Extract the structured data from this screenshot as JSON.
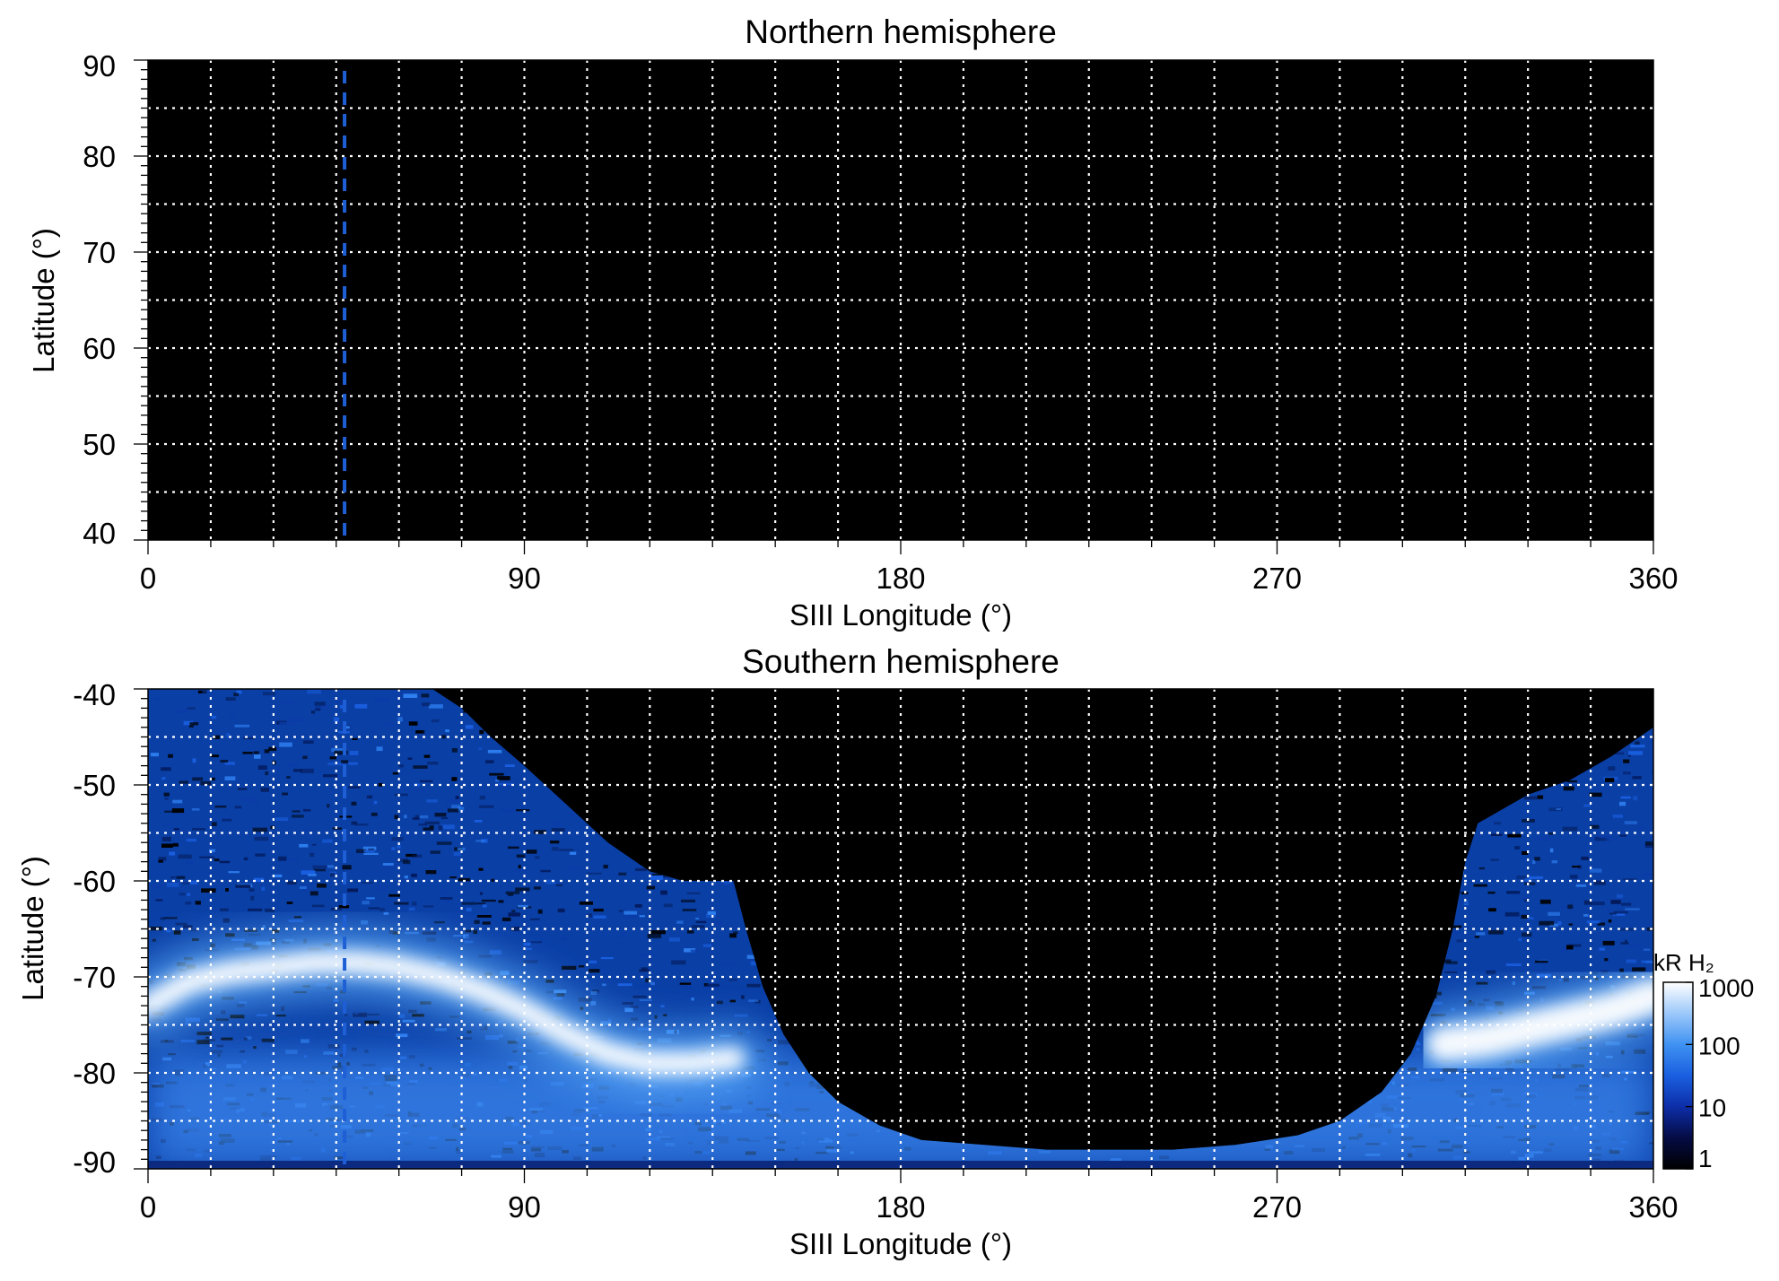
{
  "chart_data": [
    {
      "type": "heatmap",
      "title": "Northern hemisphere",
      "xlabel": "SIII Longitude (°)",
      "ylabel": "Latitude (°)",
      "xlim": [
        0,
        360
      ],
      "ylim": [
        40,
        90
      ],
      "x_ticks": [
        "0",
        "90",
        "180",
        "270",
        "360"
      ],
      "x_tick_values": [
        0,
        90,
        180,
        270,
        360
      ],
      "y_ticks": [
        "90",
        "80",
        "70",
        "60",
        "50",
        "40"
      ],
      "y_tick_values": [
        90,
        80,
        70,
        60,
        50,
        40
      ],
      "grid": true,
      "grid_x_step": 15,
      "grid_y_step": 5,
      "background": "#000000",
      "emission": [],
      "reference_line": {
        "longitude": 47,
        "style": "dashed",
        "color": "#1f5fd6"
      }
    },
    {
      "type": "heatmap",
      "title": "Southern hemisphere",
      "xlabel": "SIII Longitude (°)",
      "ylabel": "Latitude (°)",
      "xlim": [
        0,
        360
      ],
      "ylim": [
        -90,
        -40
      ],
      "x_ticks": [
        "0",
        "90",
        "180",
        "270",
        "360"
      ],
      "x_tick_values": [
        0,
        90,
        180,
        270,
        360
      ],
      "y_ticks": [
        "-40",
        "-50",
        "-60",
        "-70",
        "-80",
        "-90"
      ],
      "y_tick_values": [
        -40,
        -50,
        -60,
        -70,
        -80,
        -90
      ],
      "grid": true,
      "grid_x_step": 15,
      "grid_y_step": 5,
      "background": "#000000",
      "reference_line": {
        "longitude": 47,
        "style": "dashed",
        "color": "#1f5fd6"
      },
      "coverage_upper_edge": [
        [
          0,
          -40
        ],
        [
          10,
          -40
        ],
        [
          20,
          -40
        ],
        [
          30,
          -40
        ],
        [
          40,
          -40
        ],
        [
          50,
          -40
        ],
        [
          60,
          -40
        ],
        [
          68,
          -40
        ],
        [
          75,
          -42
        ],
        [
          82,
          -45
        ],
        [
          90,
          -48
        ],
        [
          100,
          -52
        ],
        [
          110,
          -56
        ],
        [
          120,
          -59
        ],
        [
          128,
          -60
        ],
        [
          140,
          -60
        ],
        [
          143,
          -65
        ],
        [
          147,
          -71
        ],
        [
          152,
          -76
        ],
        [
          158,
          -80
        ],
        [
          165,
          -83
        ],
        [
          175,
          -85.5
        ],
        [
          185,
          -87
        ],
        [
          200,
          -87.5
        ],
        [
          215,
          -88
        ],
        [
          230,
          -88
        ],
        [
          245,
          -88
        ],
        [
          260,
          -87.5
        ],
        [
          275,
          -86.5
        ],
        [
          285,
          -85
        ],
        [
          295,
          -82
        ],
        [
          302,
          -78
        ],
        [
          308,
          -72
        ],
        [
          312,
          -65
        ],
        [
          315,
          -58
        ],
        [
          318,
          -54
        ],
        [
          330,
          -51
        ],
        [
          340,
          -49.5
        ],
        [
          350,
          -47
        ],
        [
          360,
          -44
        ]
      ],
      "main_oval": [
        [
          0,
          -73
        ],
        [
          10,
          -70.5
        ],
        [
          20,
          -69.5
        ],
        [
          30,
          -69
        ],
        [
          40,
          -68.5
        ],
        [
          50,
          -68.5
        ],
        [
          60,
          -69
        ],
        [
          70,
          -70
        ],
        [
          80,
          -71.5
        ],
        [
          90,
          -73.5
        ],
        [
          100,
          -76
        ],
        [
          110,
          -78
        ],
        [
          120,
          -79
        ],
        [
          130,
          -79
        ],
        [
          140,
          -78.5
        ]
      ],
      "main_oval_right": [
        [
          310,
          -77
        ],
        [
          320,
          -76.5
        ],
        [
          330,
          -75.5
        ],
        [
          340,
          -74.5
        ],
        [
          350,
          -73.5
        ],
        [
          360,
          -72
        ]
      ],
      "colorbar": {
        "label": "kR H₂",
        "scale": "log",
        "range": [
          1,
          1000
        ],
        "ticks": [
          "1000",
          "100",
          "10",
          "1"
        ],
        "tick_values": [
          1000,
          100,
          10,
          1
        ],
        "colors": [
          "#000000",
          "#050c45",
          "#0d2ea8",
          "#1a5fe0",
          "#3f92f2",
          "#9cc8fa",
          "#ffffff"
        ]
      }
    }
  ]
}
